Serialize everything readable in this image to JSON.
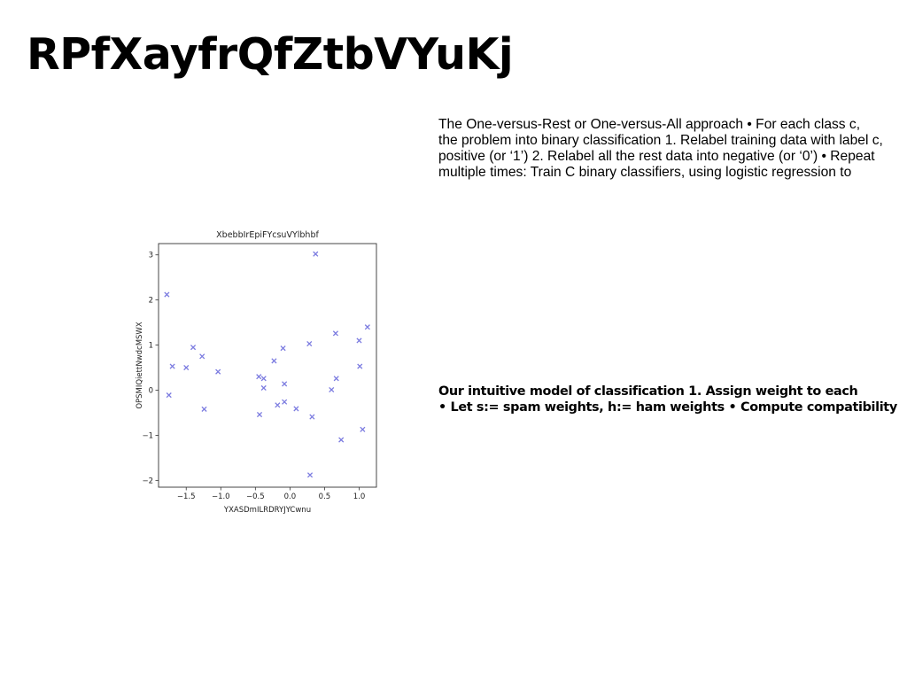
{
  "slide": {
    "title": "RPfXayfrQfZtbVYuKj",
    "paragraph_1": [
      "The One-versus-Rest or One-versus-All approach • For each class c,",
      "the problem into binary classification 1. Relabel training data with label c,",
      "positive (or ‘1’) 2. Relabel all the rest data into negative (or ‘0’) • Repeat",
      "multiple times: Train C binary classifiers, using logistic regression to"
    ],
    "paragraph_2": [
      "Our intuitive model of classification 1. Assign weight to each",
      "• Let s:= spam weights, h:= ham weights • Compute compatibility"
    ]
  },
  "chart_data": {
    "type": "scatter",
    "title": "XbebbIrEpiFYcsuVYlbhbf",
    "xlabel": "YXASDmILRDRYJYCwnu",
    "ylabel": "OPSMIQiettNwdcMSWX",
    "xlim": [
      -1.9,
      1.25
    ],
    "ylim": [
      -2.15,
      3.25
    ],
    "xticks": [
      "−1.5",
      "−1.0",
      "−0.5",
      "0.0",
      "0.5",
      "1.0"
    ],
    "xtick_values": [
      -1.5,
      -1.0,
      -0.5,
      0.0,
      0.5,
      1.0
    ],
    "yticks": [
      "−2",
      "−1",
      "0",
      "1",
      "2",
      "3"
    ],
    "ytick_values": [
      -2,
      -1,
      0,
      1,
      2,
      3
    ],
    "marker": "x",
    "color": "#7b7be0",
    "grid": false,
    "series": [
      {
        "points": [
          [
            -1.78,
            2.12
          ],
          [
            -1.75,
            -0.11
          ],
          [
            -1.7,
            0.53
          ],
          [
            -1.5,
            0.5
          ],
          [
            -1.4,
            0.95
          ],
          [
            -1.27,
            0.75
          ],
          [
            -1.24,
            -0.42
          ],
          [
            -1.04,
            0.41
          ],
          [
            -0.45,
            0.3
          ],
          [
            -0.44,
            -0.54
          ],
          [
            -0.38,
            0.26
          ],
          [
            -0.38,
            0.05
          ],
          [
            -0.23,
            0.65
          ],
          [
            -0.18,
            -0.33
          ],
          [
            -0.1,
            0.93
          ],
          [
            -0.08,
            0.14
          ],
          [
            -0.08,
            -0.26
          ],
          [
            0.09,
            -0.41
          ],
          [
            0.28,
            1.03
          ],
          [
            0.29,
            -1.88
          ],
          [
            0.32,
            -0.59
          ],
          [
            0.37,
            3.02
          ],
          [
            0.6,
            0.01
          ],
          [
            0.66,
            1.26
          ],
          [
            0.67,
            0.26
          ],
          [
            0.74,
            -1.1
          ],
          [
            1.0,
            1.1
          ],
          [
            1.01,
            0.53
          ],
          [
            1.05,
            -0.87
          ],
          [
            1.12,
            1.4
          ]
        ]
      }
    ]
  }
}
